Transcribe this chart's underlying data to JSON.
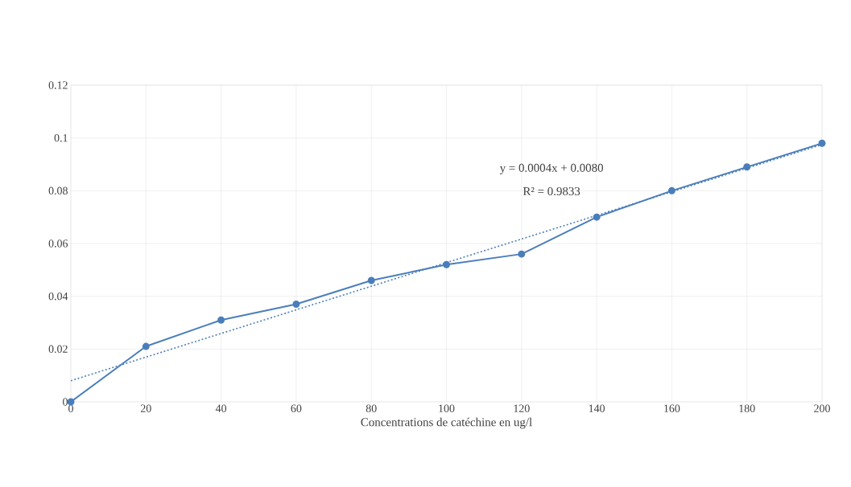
{
  "chart_data": {
    "type": "line",
    "xlabel": "Concentrations de catéchine en ug/l",
    "series": [
      {
        "x": [
          0,
          20,
          40,
          60,
          80,
          100,
          120,
          140,
          160,
          180,
          200
        ],
        "values": [
          0,
          0.021,
          0.031,
          0.037,
          0.046,
          0.052,
          0.056,
          0.07,
          0.08,
          0.089,
          0.098
        ],
        "color": "#4a7ebb",
        "marker": "circle",
        "line_style": "solid"
      },
      {
        "type": "line",
        "x": [
          0,
          200
        ],
        "values": [
          0.008,
          0.0975
        ],
        "color": "#4a7ebb",
        "marker": "none",
        "line_style": "dotted"
      }
    ],
    "xlim": [
      0,
      200
    ],
    "xticks": [
      0,
      20,
      40,
      60,
      80,
      100,
      120,
      140,
      160,
      180,
      200
    ],
    "ylim": [
      0,
      0.12
    ],
    "yticks": [
      0,
      0.02,
      0.04,
      0.06,
      0.08,
      0.1,
      0.12
    ],
    "grid": true,
    "annotations": [
      "y = 0.0004x + 0.0080",
      "R² = 0.9833"
    ]
  }
}
